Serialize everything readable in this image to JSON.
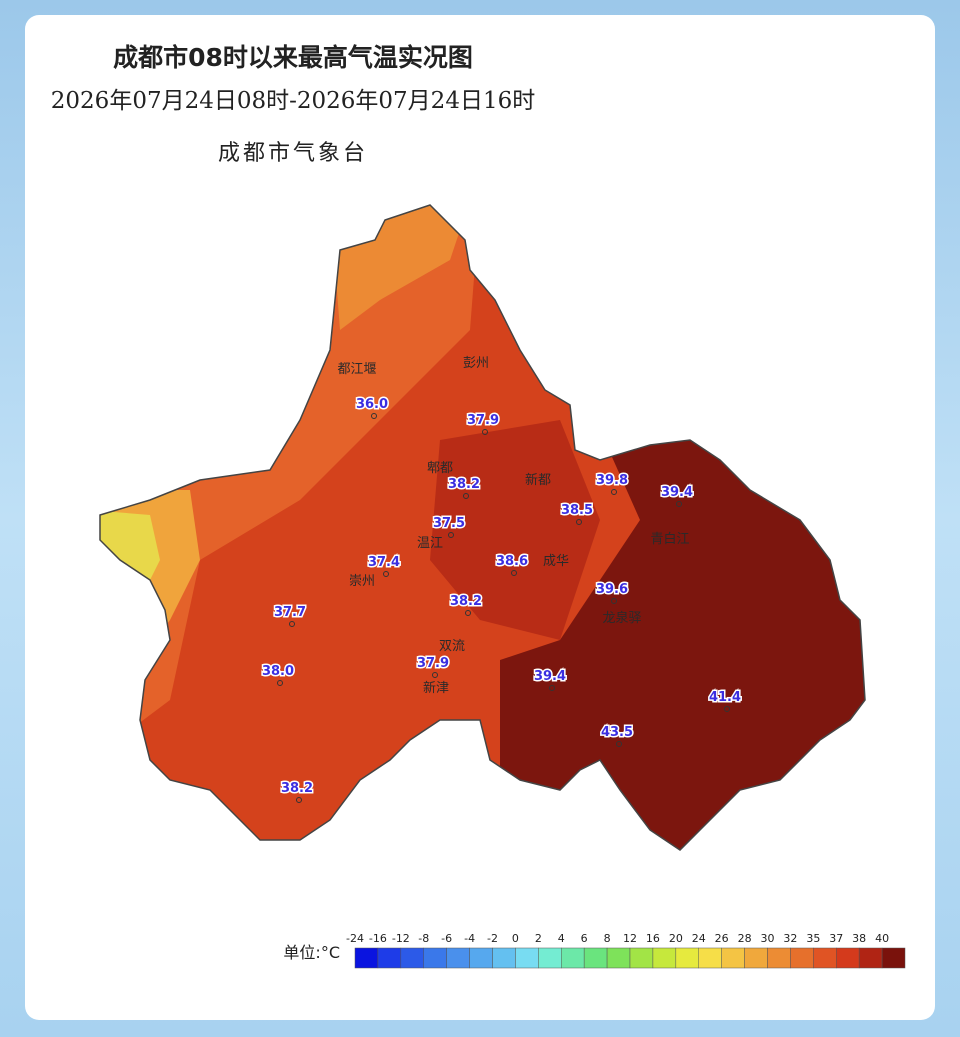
{
  "header": {
    "title": "成都市08时以来最高气温实况图",
    "period": "2026年07月24日08时-2026年07月24日16时",
    "agency": "成都市气象台"
  },
  "districts": [
    "都江堰",
    "彭州",
    "郫都",
    "新都",
    "温江",
    "崇州",
    "双流",
    "新津",
    "龙泉驿",
    "青白江",
    "成华"
  ],
  "stations": [
    "36.0",
    "37.9",
    "38.2",
    "39.8",
    "39.4",
    "38.5",
    "37.5",
    "37.4",
    "38.6",
    "39.6",
    "38.2",
    "37.7",
    "38.0",
    "37.9",
    "39.4",
    "41.4",
    "43.5",
    "38.2"
  ],
  "legend": {
    "unit": "单位:°C",
    "ticks": [
      -24,
      -16,
      -12,
      -8,
      -6,
      -4,
      -2,
      0,
      2,
      4,
      6,
      8,
      12,
      16,
      20,
      24,
      26,
      28,
      30,
      32,
      35,
      37,
      38,
      40
    ],
    "colors": [
      "#0a14e0",
      "#1e3ce8",
      "#2c5ae8",
      "#3a78ea",
      "#4a90ec",
      "#56a8ee",
      "#64c0f0",
      "#78dcf2",
      "#74ecd2",
      "#6ce8a8",
      "#6ae47e",
      "#7ee25a",
      "#a2e446",
      "#c6e83c",
      "#e6ea3e",
      "#f6de48",
      "#f4c444",
      "#f0a83c",
      "#ec8c34",
      "#e6702c",
      "#e05424",
      "#d43a1c",
      "#b02414",
      "#7a120c"
    ]
  }
}
